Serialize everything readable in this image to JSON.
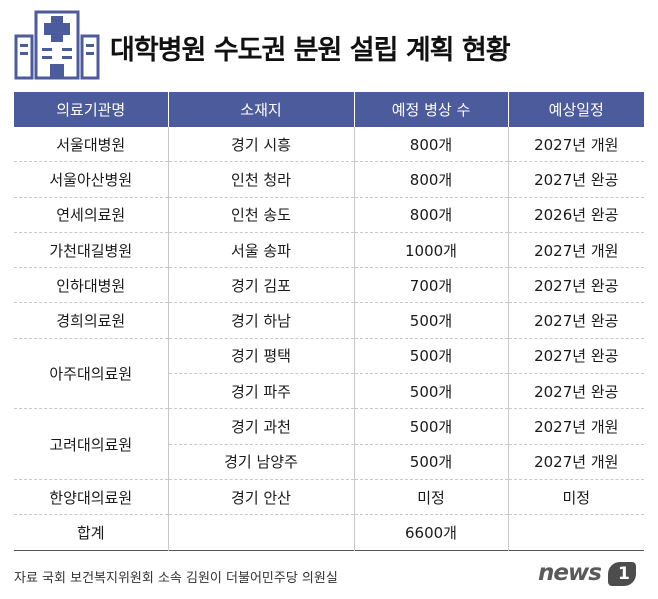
{
  "title": "대학병원 수도권 분원 설립 계획 현황",
  "colors": {
    "header_bg": "#4c5b9c",
    "icon": "#4c5b9c"
  },
  "icon": "hospital-building-icon",
  "table": {
    "headers": [
      "의료기관명",
      "소재지",
      "예정 병상 수",
      "예상일정"
    ],
    "rows": [
      {
        "institution": "서울대병원",
        "location": "경기 시흥",
        "beds": "800개",
        "schedule": "2027년 개원"
      },
      {
        "institution": "서울아산병원",
        "location": "인천 청라",
        "beds": "800개",
        "schedule": "2027년 완공"
      },
      {
        "institution": "연세의료원",
        "location": "인천 송도",
        "beds": "800개",
        "schedule": "2026년 완공"
      },
      {
        "institution": "가천대길병원",
        "location": "서울 송파",
        "beds": "1000개",
        "schedule": "2027년 개원"
      },
      {
        "institution": "인하대병원",
        "location": "경기 김포",
        "beds": "700개",
        "schedule": "2027년 완공"
      },
      {
        "institution": "경희의료원",
        "location": "경기 하남",
        "beds": "500개",
        "schedule": "2027년 완공"
      },
      {
        "institution": "아주대의료원",
        "location": "경기 평택",
        "beds": "500개",
        "schedule": "2027년 완공"
      },
      {
        "institution": "",
        "location": "경기 파주",
        "beds": "500개",
        "schedule": "2027년 완공"
      },
      {
        "institution": "고려대의료원",
        "location": "경기 과천",
        "beds": "500개",
        "schedule": "2027년 개원"
      },
      {
        "institution": "",
        "location": "경기 남양주",
        "beds": "500개",
        "schedule": "2027년 개원"
      },
      {
        "institution": "한양대의료원",
        "location": "경기 안산",
        "beds": "미정",
        "schedule": "미정"
      }
    ],
    "total": {
      "label": "합계",
      "beds": "6600개"
    }
  },
  "source": "자료 국회 보건복지위원회 소속 김원이 더불어민주당 의원실",
  "logo": {
    "text": "news",
    "mark": "1"
  }
}
